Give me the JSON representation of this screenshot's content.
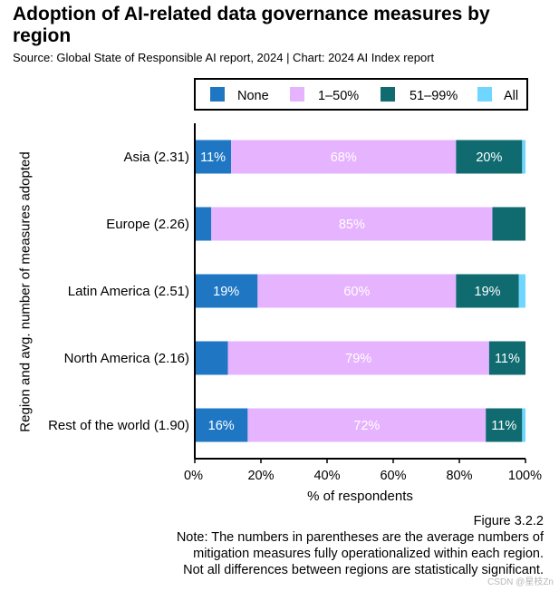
{
  "title": "Adoption of AI-related data governance measures by region",
  "source": "Source: Global State of Responsible AI report, 2024 | Chart: 2024 AI Index report",
  "figure_label": "Figure 3.2.2",
  "note_lines": [
    "Note: The numbers in parentheses are the average numbers of",
    "mitigation measures fully operationalized within each region.",
    "Not all differences between regions are statistically significant."
  ],
  "watermark": "CSDN @星枝Zn",
  "colors": {
    "None": "#1f77c4",
    "1–50%": "#e6b3ff",
    "51–99%": "#0f6b70",
    "All": "#6fd6ff"
  },
  "chart_data": {
    "type": "bar",
    "orientation": "horizontal",
    "stacked": true,
    "title": "Adoption of AI-related data governance measures by region",
    "xlabel": "% of respondents",
    "ylabel": "Region and avg. number of measures adopted",
    "xlim": [
      0,
      100
    ],
    "xticks": [
      "0%",
      "20%",
      "40%",
      "60%",
      "80%",
      "100%"
    ],
    "categories": [
      "Asia (2.31)",
      "Europe (2.26)",
      "Latin America (2.51)",
      "North America (2.16)",
      "Rest of the world (1.90)"
    ],
    "series": [
      {
        "name": "None",
        "values": [
          11,
          5,
          19,
          10,
          16
        ],
        "labels": [
          "11%",
          "",
          "19%",
          "",
          "16%"
        ]
      },
      {
        "name": "1–50%",
        "values": [
          68,
          85,
          60,
          79,
          72
        ],
        "labels": [
          "68%",
          "85%",
          "60%",
          "79%",
          "72%"
        ]
      },
      {
        "name": "51–99%",
        "values": [
          20,
          10,
          19,
          11,
          11
        ],
        "labels": [
          "20%",
          "",
          "19%",
          "11%",
          "11%"
        ]
      },
      {
        "name": "All",
        "values": [
          1,
          0,
          2,
          0,
          1
        ],
        "labels": [
          "",
          "",
          "",
          "",
          ""
        ]
      }
    ],
    "legend": [
      "None",
      "1–50%",
      "51–99%",
      "All"
    ],
    "legend_position": "top"
  }
}
